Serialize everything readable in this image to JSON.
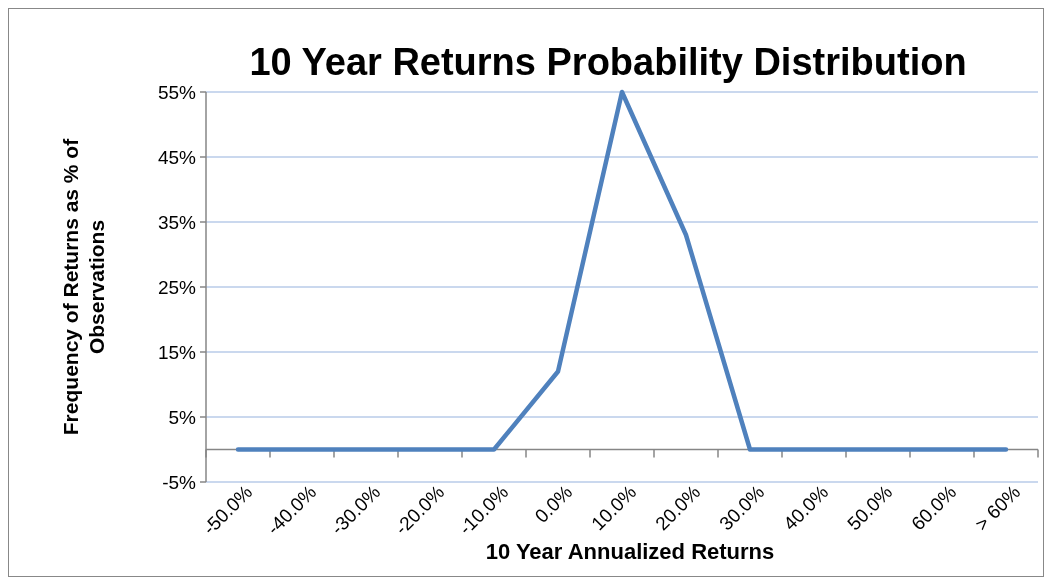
{
  "chart_data": {
    "type": "line",
    "title": "10 Year Returns Probability Distribution",
    "xlabel": "10 Year Annualized Returns",
    "ylabel": "Frequency of Returns as % of Observations",
    "categories": [
      "-50.0%",
      "-40.0%",
      "-30.0%",
      "-20.0%",
      "-10.0%",
      "0.0%",
      "10.0%",
      "20.0%",
      "30.0%",
      "40.0%",
      "50.0%",
      "60.0%",
      "> 60%"
    ],
    "series": [
      {
        "color": "#4f81bd",
        "values": [
          0,
          0,
          0,
          0,
          0,
          12,
          55,
          33,
          0,
          0,
          0,
          0,
          0
        ]
      }
    ],
    "ylim": [
      -5,
      55
    ],
    "yticks": [
      {
        "value": -5,
        "label": "-5%"
      },
      {
        "value": 5,
        "label": "5%"
      },
      {
        "value": 15,
        "label": "15%"
      },
      {
        "value": 25,
        "label": "25%"
      },
      {
        "value": 35,
        "label": "35%"
      },
      {
        "value": 45,
        "label": "45%"
      },
      {
        "value": 55,
        "label": "55%"
      }
    ],
    "grid": "y",
    "marker": "none",
    "line_style": "solid"
  }
}
